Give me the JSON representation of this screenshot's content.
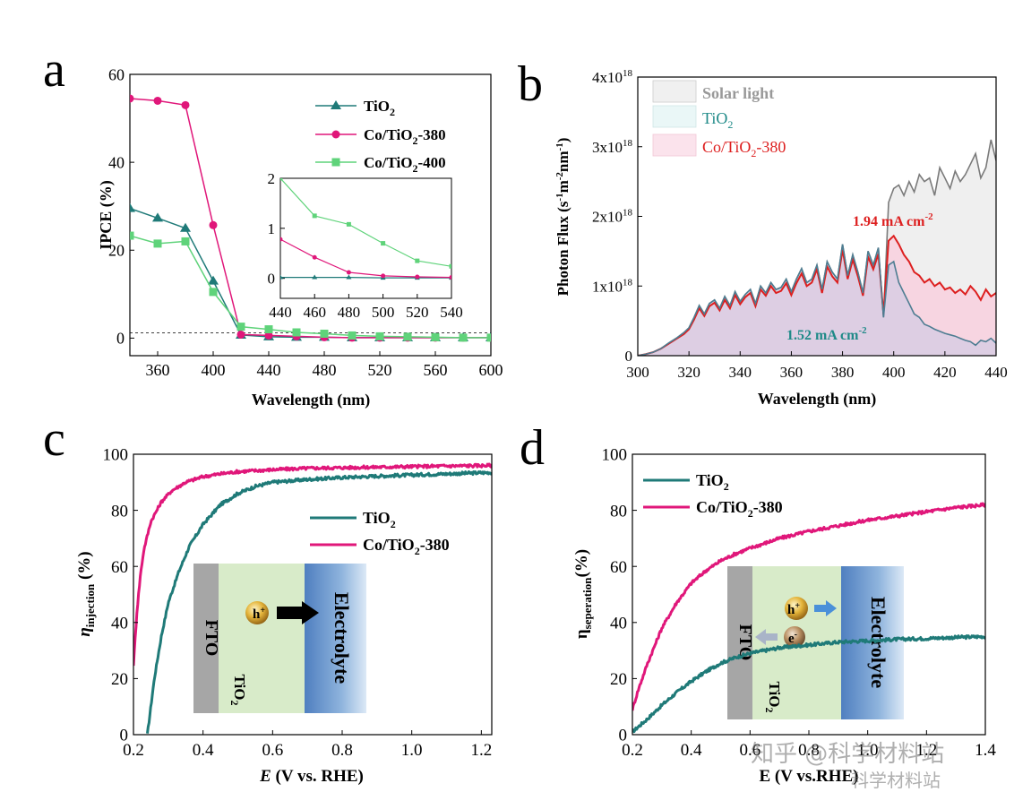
{
  "colors": {
    "tio2": "#1f7a78",
    "co380": "#e0177a",
    "co400": "#5fd37a",
    "solar": "#808080",
    "red": "#dd1f1f"
  },
  "chart_data": [
    {
      "panel": "a",
      "type": "line",
      "xlabel": "Wavelength (nm)",
      "ylabel": "IPCE (%)",
      "xlim": [
        340,
        600
      ],
      "ylim": [
        -4,
        60
      ],
      "xticks": [
        "360",
        "400",
        "440",
        "480",
        "520",
        "560",
        "600"
      ],
      "yticks": [
        "0",
        "20",
        "40",
        "60"
      ],
      "legend": [
        "TiO2",
        "Co/TiO2-380",
        "Co/TiO2-400"
      ],
      "series": [
        {
          "name": "TiO2",
          "x": [
            340,
            360,
            380,
            400,
            420,
            440,
            460,
            480,
            500,
            520,
            540,
            560,
            580,
            600
          ],
          "y": [
            29.5,
            27.3,
            25.0,
            13.0,
            0.7,
            0.3,
            0.2,
            0.2,
            0.1,
            0.1,
            0.1,
            0.1,
            0.1,
            0.1
          ]
        },
        {
          "name": "Co/TiO2-380",
          "x": [
            340,
            360,
            380,
            400,
            420,
            440,
            460,
            480,
            500,
            520,
            540,
            560,
            580,
            600
          ],
          "y": [
            54.5,
            54.0,
            53.0,
            25.7,
            0.8,
            0.6,
            0.4,
            0.2,
            0.1,
            0.1,
            0.1,
            0.1,
            0.1,
            0.1
          ]
        },
        {
          "name": "Co/TiO2-400",
          "x": [
            340,
            360,
            380,
            400,
            420,
            440,
            460,
            480,
            500,
            520,
            540,
            560,
            580,
            600
          ],
          "y": [
            23.3,
            21.5,
            22.0,
            10.5,
            2.6,
            2.0,
            1.3,
            1.0,
            0.6,
            0.4,
            0.3,
            0.2,
            0.1,
            0.1
          ]
        }
      ],
      "inset": {
        "xlim": [
          440,
          540
        ],
        "ylim": [
          -0.4,
          2
        ],
        "xticks": [
          "440",
          "460",
          "480",
          "500",
          "520",
          "540"
        ],
        "yticks": [
          "0",
          "1",
          "2"
        ],
        "series": [
          {
            "name": "TiO2",
            "x": [
              440,
              460,
              480,
              500,
              520,
              540
            ],
            "y": [
              0.02,
              0.02,
              0.02,
              0.01,
              0.01,
              0.01
            ]
          },
          {
            "name": "Co/TiO2-380",
            "x": [
              440,
              460,
              480,
              500,
              520,
              540
            ],
            "y": [
              0.78,
              0.42,
              0.12,
              0.05,
              0.03,
              0.02
            ]
          },
          {
            "name": "Co/TiO2-400",
            "x": [
              440,
              460,
              480,
              500,
              520,
              540
            ],
            "y": [
              2.0,
              1.25,
              1.08,
              0.7,
              0.35,
              0.24
            ]
          }
        ]
      }
    },
    {
      "panel": "b",
      "type": "area",
      "xlabel": "Wavelength (nm)",
      "ylabel": "Photon Flux (s-1m-2nm-1)",
      "xlim": [
        300,
        440
      ],
      "ylim": [
        0,
        4
      ],
      "y_unit_exponent": "18",
      "xticks": [
        "300",
        "320",
        "340",
        "360",
        "380",
        "400",
        "420",
        "440"
      ],
      "yticks": [
        "0",
        "1x10",
        "2x10",
        "3x10",
        "4x10"
      ],
      "legend": [
        "Solar light",
        "TiO2",
        "Co/TiO2-380"
      ],
      "annotations": [
        "1.94 mA cm",
        "1.52 mA cm"
      ],
      "series": [
        {
          "name": "Solar light",
          "x": [
            300,
            303,
            306,
            309,
            312,
            315,
            318,
            320,
            322,
            324,
            326,
            328,
            330,
            332,
            334,
            336,
            338,
            340,
            342,
            344,
            346,
            348,
            350,
            352,
            354,
            356,
            358,
            360,
            362,
            364,
            366,
            368,
            370,
            372,
            374,
            376,
            378,
            380,
            382,
            384,
            386,
            388,
            390,
            392,
            394,
            396,
            398,
            400,
            402,
            404,
            406,
            408,
            410,
            412,
            414,
            416,
            418,
            420,
            422,
            424,
            426,
            428,
            430,
            432,
            434,
            436,
            438,
            440
          ],
          "y": [
            0.0,
            0.02,
            0.05,
            0.1,
            0.18,
            0.25,
            0.33,
            0.4,
            0.55,
            0.72,
            0.6,
            0.75,
            0.8,
            0.68,
            0.85,
            0.72,
            0.92,
            0.78,
            0.88,
            0.95,
            0.75,
            1.0,
            0.9,
            1.05,
            0.95,
            0.98,
            1.1,
            0.92,
            1.1,
            1.25,
            1.05,
            1.1,
            1.3,
            0.95,
            1.35,
            1.2,
            1.1,
            1.6,
            1.15,
            1.45,
            1.2,
            0.9,
            1.5,
            1.3,
            1.55,
            0.55,
            2.2,
            2.4,
            2.45,
            2.3,
            2.5,
            2.35,
            2.6,
            2.5,
            2.55,
            2.3,
            2.7,
            2.55,
            2.4,
            2.65,
            2.5,
            2.6,
            2.75,
            2.9,
            2.55,
            2.7,
            3.1,
            2.8
          ]
        },
        {
          "name": "TiO2",
          "x": [
            300,
            303,
            306,
            309,
            312,
            315,
            318,
            320,
            322,
            324,
            326,
            328,
            330,
            332,
            334,
            336,
            338,
            340,
            342,
            344,
            346,
            348,
            350,
            352,
            354,
            356,
            358,
            360,
            362,
            364,
            366,
            368,
            370,
            372,
            374,
            376,
            378,
            380,
            382,
            384,
            386,
            388,
            390,
            392,
            394,
            396,
            398,
            400,
            402,
            404,
            406,
            408,
            410,
            412,
            414,
            416,
            418,
            420,
            422,
            424,
            426,
            428,
            430,
            432,
            434,
            436,
            438,
            440
          ],
          "y": [
            0.0,
            0.02,
            0.05,
            0.1,
            0.18,
            0.25,
            0.33,
            0.4,
            0.55,
            0.72,
            0.6,
            0.75,
            0.8,
            0.68,
            0.85,
            0.72,
            0.92,
            0.78,
            0.88,
            0.95,
            0.75,
            1.0,
            0.9,
            1.05,
            0.95,
            0.98,
            1.1,
            0.92,
            1.1,
            1.25,
            1.05,
            1.1,
            1.3,
            0.95,
            1.35,
            1.2,
            1.1,
            1.6,
            1.15,
            1.45,
            1.2,
            0.9,
            1.5,
            1.3,
            1.55,
            0.55,
            1.3,
            1.35,
            1.05,
            0.9,
            0.75,
            0.6,
            0.55,
            0.45,
            0.42,
            0.38,
            0.35,
            0.32,
            0.3,
            0.28,
            0.25,
            0.22,
            0.2,
            0.15,
            0.22,
            0.2,
            0.25,
            0.18
          ]
        },
        {
          "name": "Co/TiO2-380",
          "x": [
            300,
            303,
            306,
            309,
            312,
            315,
            318,
            320,
            322,
            324,
            326,
            328,
            330,
            332,
            334,
            336,
            338,
            340,
            342,
            344,
            346,
            348,
            350,
            352,
            354,
            356,
            358,
            360,
            362,
            364,
            366,
            368,
            370,
            372,
            374,
            376,
            378,
            380,
            382,
            384,
            386,
            388,
            390,
            392,
            394,
            396,
            398,
            400,
            402,
            404,
            406,
            408,
            410,
            412,
            414,
            416,
            418,
            420,
            422,
            424,
            426,
            428,
            430,
            432,
            434,
            436,
            438,
            440
          ],
          "y": [
            0.0,
            0.02,
            0.05,
            0.1,
            0.17,
            0.24,
            0.31,
            0.38,
            0.52,
            0.68,
            0.57,
            0.71,
            0.76,
            0.65,
            0.8,
            0.68,
            0.87,
            0.74,
            0.84,
            0.9,
            0.71,
            0.95,
            0.86,
            1.0,
            0.9,
            0.93,
            1.04,
            0.87,
            1.04,
            1.18,
            1.0,
            1.05,
            1.24,
            0.9,
            1.28,
            1.14,
            1.05,
            1.52,
            1.1,
            1.38,
            1.14,
            0.86,
            1.42,
            1.24,
            1.46,
            0.6,
            1.65,
            1.72,
            1.6,
            1.45,
            1.35,
            1.2,
            1.15,
            1.05,
            1.1,
            1.0,
            1.05,
            0.95,
            0.98,
            0.9,
            0.95,
            0.88,
            1.0,
            0.92,
            0.8,
            0.95,
            0.85,
            0.9
          ]
        }
      ]
    },
    {
      "panel": "c",
      "type": "line",
      "xlabel": "E (V vs. RHE)",
      "ylabel": "eta injection (%)",
      "xlim": [
        0.2,
        1.23
      ],
      "ylim": [
        0,
        100
      ],
      "xticks": [
        "0.2",
        "0.4",
        "0.6",
        "0.8",
        "1.0",
        "1.2"
      ],
      "yticks": [
        "0",
        "20",
        "40",
        "60",
        "80",
        "100"
      ],
      "legend": [
        "TiO2",
        "Co/TiO2-380"
      ],
      "series": [
        {
          "name": "TiO2",
          "x": [
            0.24,
            0.26,
            0.28,
            0.3,
            0.33,
            0.36,
            0.4,
            0.45,
            0.5,
            0.55,
            0.6,
            0.7,
            0.8,
            0.9,
            1.0,
            1.1,
            1.23
          ],
          "y": [
            0,
            20,
            35,
            47,
            58,
            67,
            75,
            82,
            86,
            88.5,
            90,
            91,
            91.7,
            92.2,
            92.6,
            93,
            93.5
          ]
        },
        {
          "name": "Co/TiO2-380",
          "x": [
            0.2,
            0.21,
            0.22,
            0.23,
            0.25,
            0.28,
            0.31,
            0.35,
            0.4,
            0.45,
            0.5,
            0.6,
            0.7,
            0.8,
            0.9,
            1.0,
            1.1,
            1.23
          ],
          "y": [
            25,
            44,
            57,
            66,
            76,
            83,
            87,
            90,
            92,
            93,
            93.8,
            94.5,
            95,
            95.2,
            95.4,
            95.6,
            95.8,
            96
          ]
        }
      ],
      "inset": {
        "labels": [
          "FTO",
          "TiO2",
          "Electrolyte",
          "h+"
        ]
      }
    },
    {
      "panel": "d",
      "type": "line",
      "xlabel": "E (V vs.RHE)",
      "ylabel": "eta seperation(%)",
      "xlim": [
        0.2,
        1.4
      ],
      "ylim": [
        0,
        100
      ],
      "xticks": [
        "0.2",
        "0.4",
        "0.6",
        "0.8",
        "1.0",
        "1.2",
        "1.4"
      ],
      "yticks": [
        "0",
        "20",
        "40",
        "60",
        "80",
        "100"
      ],
      "legend": [
        "TiO2",
        "Co/TiO2-380"
      ],
      "series": [
        {
          "name": "TiO2",
          "x": [
            0.2,
            0.25,
            0.3,
            0.35,
            0.4,
            0.45,
            0.5,
            0.55,
            0.6,
            0.7,
            0.8,
            0.9,
            1.0,
            1.1,
            1.2,
            1.3,
            1.4
          ],
          "y": [
            1,
            5.5,
            10.5,
            15,
            19,
            22.5,
            25.5,
            27.5,
            29,
            31,
            32,
            33,
            33.5,
            34,
            34.3,
            34.7,
            35
          ]
        },
        {
          "name": "Co/TiO2-380",
          "x": [
            0.2,
            0.22,
            0.25,
            0.3,
            0.35,
            0.4,
            0.45,
            0.5,
            0.55,
            0.6,
            0.7,
            0.8,
            0.9,
            1.0,
            1.1,
            1.2,
            1.3,
            1.4
          ],
          "y": [
            9,
            16,
            25,
            38,
            47,
            54,
            58.5,
            62,
            64.5,
            66.5,
            70,
            72.5,
            74.5,
            76.5,
            78,
            79.5,
            81,
            82
          ]
        }
      ],
      "inset": {
        "labels": [
          "FTO",
          "TiO2",
          "Electrolyte",
          "h+",
          "e-"
        ]
      }
    }
  ],
  "panels": {
    "a": {
      "letter": "a",
      "ylabel": "IPCE (%)",
      "xlabel": "Wavelength (nm)",
      "legend": [
        {
          "main": "TiO",
          "sub": "2",
          "tail": ""
        },
        {
          "main": "Co/TiO",
          "sub": "2",
          "tail": "-380"
        },
        {
          "main": "Co/TiO",
          "sub": "2",
          "tail": "-400"
        }
      ]
    },
    "b": {
      "letter": "b",
      "ylabel_main": "Photon Flux (s",
      "ylabel_sup1": "-1",
      "ylabel_mid": "m",
      "ylabel_sup2": "-2",
      "ylabel_mid2": "nm",
      "ylabel_sup3": "-1",
      "ylabel_tail": ")",
      "xlabel": "Wavelength (nm)",
      "legend": [
        {
          "main": "Solar light",
          "sub": "",
          "tail": ""
        },
        {
          "main": "TiO",
          "sub": "2",
          "tail": ""
        },
        {
          "main": "Co/TiO",
          "sub": "2",
          "tail": "-380"
        }
      ],
      "ann_red": {
        "main": "1.94 mA cm",
        "sup": "-2"
      },
      "ann_teal": {
        "main": "1.52 mA cm",
        "sup": "-2"
      }
    },
    "c": {
      "letter": "c",
      "ylabel_eta": "η",
      "ylabel_sub": "injection",
      "ylabel_tail": " (%)",
      "xlabel_e": "E",
      "xlabel_tail": " (V vs. RHE)",
      "legend": [
        {
          "main": "TiO",
          "sub": "2",
          "tail": ""
        },
        {
          "main": "Co/TiO",
          "sub": "2",
          "tail": "-380"
        }
      ],
      "inset": {
        "fto": "FTO",
        "tio": "TiO",
        "tio_sub": "2",
        "electrolyte": "Electrolyte",
        "hole": "h",
        "hole_sup": "+"
      }
    },
    "d": {
      "letter": "d",
      "ylabel_eta": "η",
      "ylabel_sub": "seperation",
      "ylabel_tail": "(%)",
      "xlabel": "E (V vs.RHE)",
      "legend": [
        {
          "main": "TiO",
          "sub": "2",
          "tail": ""
        },
        {
          "main": "Co/TiO",
          "sub": "2",
          "tail": "-380"
        }
      ],
      "inset": {
        "fto": "FTO",
        "tio": "TiO",
        "tio_sub": "2",
        "electrolyte": "Electrolyte",
        "hole": "h",
        "hole_sup": "+",
        "electron": "e",
        "electron_sup": "-"
      }
    }
  },
  "watermark": {
    "line1": "知乎 @科学材料站",
    "line2": "科学材料站"
  }
}
